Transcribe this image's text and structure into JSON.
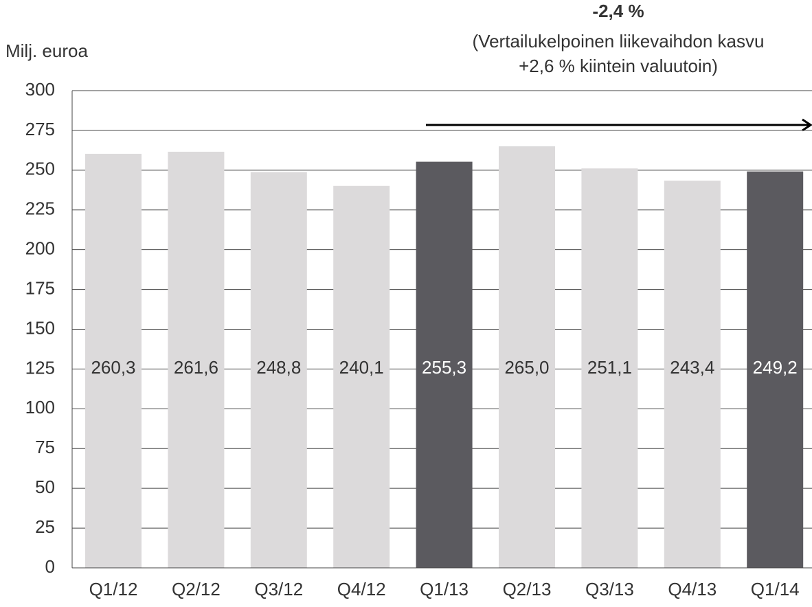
{
  "chart_data": {
    "type": "bar",
    "y_label": "Milj. euroa",
    "annotations": [
      "-2,4 %",
      "(Vertailukelpoinen liikevaihdon kasvu",
      "+2,6 % kiintein valuutoin)"
    ],
    "categories": [
      "Q1/12",
      "Q2/12",
      "Q3/12",
      "Q4/12",
      "Q1/13",
      "Q2/13",
      "Q3/13",
      "Q4/13",
      "Q1/14"
    ],
    "values": [
      260.3,
      261.6,
      248.8,
      240.1,
      255.3,
      265.0,
      251.1,
      243.4,
      249.2
    ],
    "value_labels": [
      "260,3",
      "261,6",
      "248,8",
      "240,1",
      "255,3",
      "265,0",
      "251,1",
      "243,4",
      "249,2"
    ],
    "colors": [
      "#dcdadb",
      "#dcdadb",
      "#dcdadb",
      "#dcdadb",
      "#5b5a5f",
      "#dcdadb",
      "#dcdadb",
      "#dcdadb",
      "#5b5a5f"
    ],
    "ylim": [
      0,
      300
    ],
    "yticks": [
      0,
      25,
      50,
      75,
      100,
      125,
      150,
      175,
      200,
      225,
      250,
      275,
      300
    ],
    "grid": true
  }
}
